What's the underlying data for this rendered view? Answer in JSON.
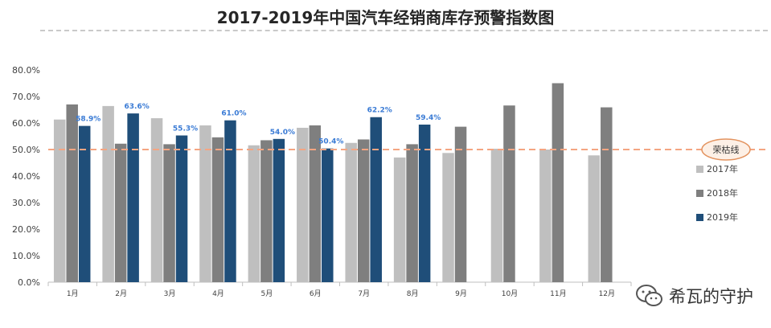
{
  "title": "2017-2019年中国汽车经销商库存预警指数图",
  "chart_data": {
    "type": "bar",
    "title": "2017-2019年中国汽车经销商库存预警指数图",
    "categories": [
      "1月",
      "2月",
      "3月",
      "4月",
      "5月",
      "6月",
      "7月",
      "8月",
      "9月",
      "10月",
      "11月",
      "12月"
    ],
    "series": [
      {
        "name": "2017年",
        "color": "#bfbfbf",
        "values": [
          61.3,
          66.4,
          61.8,
          59.1,
          51.6,
          58.2,
          52.5,
          47.0,
          48.7,
          50.3,
          50.0,
          47.8
        ]
      },
      {
        "name": "2018年",
        "color": "#7f7f7f",
        "values": [
          67.0,
          52.2,
          52.0,
          54.6,
          53.5,
          59.1,
          53.8,
          52.0,
          58.6,
          66.6,
          75.0,
          65.9
        ]
      },
      {
        "name": "2019年",
        "color": "#1f4e79",
        "values": [
          58.9,
          63.6,
          55.3,
          61.0,
          54.0,
          50.4,
          62.2,
          59.4,
          null,
          null,
          null,
          null
        ]
      }
    ],
    "data_labels": [
      "58.9%",
      "63.6%",
      "55.3%",
      "61.0%",
      "54.0%",
      "50.4%",
      "62.2%",
      "59.4%"
    ],
    "yticks": [
      "0.0%",
      "10.0%",
      "20.0%",
      "30.0%",
      "40.0%",
      "50.0%",
      "60.0%",
      "70.0%",
      "80.0%"
    ],
    "ylim": [
      0,
      80
    ],
    "reference_line": {
      "value": 50,
      "label": "荣枯线",
      "color": "#f4a582"
    },
    "legend_position": "right",
    "grid": false
  },
  "watermark": {
    "text": "希瓦的守护",
    "icon": "wechat-icon"
  }
}
